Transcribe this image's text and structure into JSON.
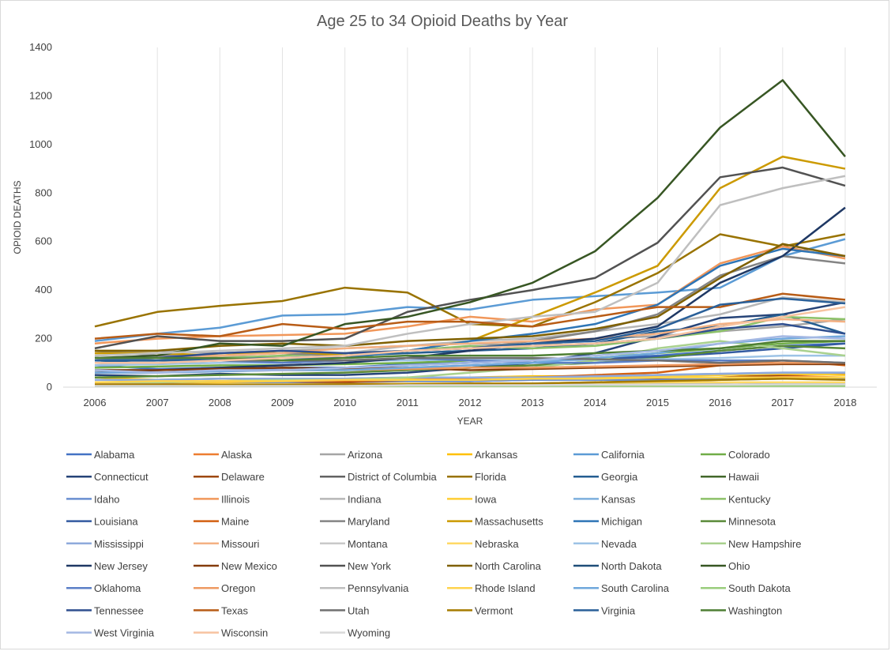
{
  "chart_data": {
    "type": "line",
    "title": "Age 25 to 34 Opioid Deaths by Year",
    "xlabel": "YEAR",
    "ylabel": "OPIOID DEATHS",
    "ylim": [
      0,
      1400
    ],
    "yticks": [
      0,
      200,
      400,
      600,
      800,
      1000,
      1200,
      1400
    ],
    "x": [
      2006,
      2007,
      2008,
      2009,
      2010,
      2011,
      2012,
      2013,
      2014,
      2015,
      2016,
      2017,
      2018
    ],
    "grid": "vertical",
    "legend_position": "bottom",
    "series": [
      {
        "name": "Alabama",
        "color": "#4472C4",
        "values": [
          90,
          75,
          80,
          70,
          80,
          95,
          100,
          110,
          120,
          130,
          150,
          170,
          180
        ]
      },
      {
        "name": "Alaska",
        "color": "#ED7D31",
        "values": [
          20,
          15,
          20,
          25,
          20,
          30,
          35,
          30,
          30,
          35,
          40,
          45,
          40
        ]
      },
      {
        "name": "Arizona",
        "color": "#A5A5A5",
        "values": [
          140,
          150,
          140,
          150,
          160,
          170,
          180,
          170,
          200,
          210,
          230,
          250,
          280
        ]
      },
      {
        "name": "Arkansas",
        "color": "#FFC000",
        "values": [
          40,
          30,
          35,
          30,
          30,
          35,
          40,
          45,
          45,
          50,
          50,
          55,
          50
        ]
      },
      {
        "name": "California",
        "color": "#5B9BD5",
        "values": [
          190,
          220,
          245,
          295,
          300,
          330,
          320,
          360,
          375,
          390,
          410,
          540,
          610
        ]
      },
      {
        "name": "Colorado",
        "color": "#70AD47",
        "values": [
          80,
          85,
          90,
          90,
          95,
          100,
          110,
          115,
          120,
          140,
          160,
          180,
          190
        ]
      },
      {
        "name": "Connecticut",
        "color": "#264478",
        "values": [
          50,
          45,
          55,
          50,
          50,
          60,
          80,
          100,
          140,
          210,
          285,
          300,
          350
        ]
      },
      {
        "name": "Delaware",
        "color": "#9E480E",
        "values": [
          15,
          15,
          20,
          20,
          20,
          25,
          25,
          30,
          30,
          35,
          40,
          50,
          55
        ]
      },
      {
        "name": "District of Columbia",
        "color": "#636363",
        "values": [
          10,
          10,
          10,
          10,
          10,
          10,
          12,
          15,
          20,
          25,
          30,
          35,
          40
        ]
      },
      {
        "name": "Florida",
        "color": "#997300",
        "values": [
          250,
          310,
          335,
          355,
          410,
          390,
          260,
          250,
          350,
          470,
          630,
          580,
          630
        ]
      },
      {
        "name": "Georgia",
        "color": "#255E91",
        "values": [
          100,
          110,
          115,
          120,
          130,
          140,
          150,
          160,
          180,
          230,
          250,
          300,
          220
        ]
      },
      {
        "name": "Hawaii",
        "color": "#43682B",
        "values": [
          10,
          10,
          10,
          10,
          10,
          10,
          10,
          10,
          10,
          12,
          12,
          12,
          15
        ]
      },
      {
        "name": "Idaho",
        "color": "#698ED0",
        "values": [
          20,
          20,
          20,
          20,
          25,
          25,
          25,
          30,
          30,
          30,
          35,
          35,
          35
        ]
      },
      {
        "name": "Illinois",
        "color": "#F1975A",
        "values": [
          180,
          200,
          210,
          215,
          220,
          250,
          290,
          270,
          320,
          340,
          510,
          580,
          530
        ]
      },
      {
        "name": "Indiana",
        "color": "#B7B7B7",
        "values": [
          90,
          110,
          130,
          120,
          140,
          170,
          190,
          200,
          230,
          260,
          300,
          370,
          350
        ]
      },
      {
        "name": "Iowa",
        "color": "#FFCD33",
        "values": [
          20,
          20,
          20,
          25,
          25,
          30,
          30,
          35,
          40,
          45,
          50,
          55,
          50
        ]
      },
      {
        "name": "Kansas",
        "color": "#7CAFDD",
        "values": [
          30,
          30,
          35,
          35,
          35,
          40,
          40,
          40,
          45,
          50,
          55,
          60,
          60
        ]
      },
      {
        "name": "Kentucky",
        "color": "#8CC168",
        "values": [
          130,
          140,
          120,
          130,
          140,
          150,
          170,
          160,
          170,
          200,
          230,
          290,
          280
        ]
      },
      {
        "name": "Louisiana",
        "color": "#335AA1",
        "values": [
          70,
          70,
          75,
          80,
          80,
          90,
          100,
          110,
          115,
          125,
          140,
          160,
          180
        ]
      },
      {
        "name": "Maine",
        "color": "#D26012",
        "values": [
          20,
          20,
          25,
          25,
          25,
          30,
          35,
          40,
          50,
          60,
          90,
          110,
          90
        ]
      },
      {
        "name": "Maryland",
        "color": "#848484",
        "values": [
          150,
          130,
          130,
          140,
          130,
          150,
          160,
          190,
          230,
          300,
          460,
          540,
          510
        ]
      },
      {
        "name": "Massachusetts",
        "color": "#CC9A00",
        "values": [
          140,
          140,
          130,
          150,
          130,
          150,
          190,
          290,
          390,
          500,
          820,
          950,
          900
        ]
      },
      {
        "name": "Michigan",
        "color": "#2E75B6",
        "values": [
          110,
          120,
          110,
          120,
          120,
          150,
          190,
          220,
          260,
          340,
          500,
          570,
          540
        ]
      },
      {
        "name": "Minnesota",
        "color": "#5A8A39",
        "values": [
          40,
          45,
          50,
          55,
          60,
          70,
          80,
          90,
          100,
          120,
          150,
          170,
          160
        ]
      },
      {
        "name": "Mississippi",
        "color": "#8FAADC",
        "values": [
          30,
          30,
          35,
          35,
          35,
          40,
          40,
          40,
          45,
          50,
          55,
          60,
          60
        ]
      },
      {
        "name": "Missouri",
        "color": "#F4B183",
        "values": [
          110,
          120,
          130,
          140,
          160,
          170,
          180,
          190,
          200,
          220,
          260,
          280,
          270
        ]
      },
      {
        "name": "Montana",
        "color": "#C9C9C9",
        "values": [
          10,
          10,
          10,
          10,
          10,
          10,
          12,
          12,
          12,
          15,
          15,
          15,
          15
        ]
      },
      {
        "name": "Nebraska",
        "color": "#FFD966",
        "values": [
          10,
          10,
          12,
          12,
          12,
          15,
          15,
          15,
          15,
          20,
          20,
          20,
          20
        ]
      },
      {
        "name": "Nevada",
        "color": "#9DC3E6",
        "values": [
          90,
          95,
          100,
          100,
          110,
          110,
          115,
          110,
          110,
          115,
          120,
          130,
          130
        ]
      },
      {
        "name": "New Hampshire",
        "color": "#A9D18E",
        "values": [
          20,
          20,
          25,
          30,
          30,
          40,
          60,
          80,
          110,
          160,
          190,
          160,
          130
        ]
      },
      {
        "name": "New Jersey",
        "color": "#1F3864",
        "values": [
          60,
          70,
          80,
          90,
          100,
          120,
          150,
          180,
          200,
          250,
          430,
          540,
          740
        ]
      },
      {
        "name": "New Mexico",
        "color": "#843C0C",
        "values": [
          70,
          70,
          75,
          80,
          75,
          80,
          70,
          75,
          80,
          85,
          90,
          95,
          95
        ]
      },
      {
        "name": "New York",
        "color": "#525252",
        "values": [
          160,
          210,
          190,
          190,
          200,
          310,
          360,
          400,
          450,
          595,
          865,
          905,
          830
        ]
      },
      {
        "name": "North Carolina",
        "color": "#7F6000",
        "values": [
          150,
          150,
          170,
          180,
          170,
          190,
          200,
          210,
          240,
          290,
          450,
          590,
          540
        ]
      },
      {
        "name": "North Dakota",
        "color": "#1F4E79",
        "values": [
          5,
          5,
          5,
          5,
          5,
          8,
          8,
          8,
          10,
          10,
          10,
          12,
          12
        ]
      },
      {
        "name": "Ohio",
        "color": "#375623",
        "values": [
          120,
          130,
          180,
          170,
          260,
          290,
          350,
          430,
          560,
          780,
          1070,
          1265,
          950
        ]
      },
      {
        "name": "Oklahoma",
        "color": "#5B7FC7",
        "values": [
          110,
          120,
          110,
          100,
          110,
          120,
          110,
          100,
          100,
          110,
          110,
          110,
          100
        ]
      },
      {
        "name": "Oregon",
        "color": "#EE9A62",
        "values": [
          60,
          60,
          65,
          70,
          70,
          75,
          80,
          80,
          85,
          90,
          95,
          100,
          100
        ]
      },
      {
        "name": "Pennsylvania",
        "color": "#BFBFBF",
        "values": [
          130,
          140,
          150,
          160,
          170,
          220,
          260,
          290,
          310,
          430,
          750,
          820,
          870
        ]
      },
      {
        "name": "Rhode Island",
        "color": "#FFD34D",
        "values": [
          20,
          25,
          25,
          25,
          30,
          30,
          30,
          35,
          35,
          40,
          40,
          40,
          40
        ]
      },
      {
        "name": "South Carolina",
        "color": "#6FA8DC",
        "values": [
          60,
          60,
          65,
          70,
          70,
          80,
          90,
          100,
          120,
          140,
          180,
          200,
          210
        ]
      },
      {
        "name": "South Dakota",
        "color": "#9ACD7C",
        "values": [
          5,
          5,
          5,
          5,
          5,
          5,
          5,
          5,
          5,
          5,
          5,
          5,
          5
        ]
      },
      {
        "name": "Tennessee",
        "color": "#2F4F8F",
        "values": [
          120,
          120,
          140,
          150,
          140,
          150,
          160,
          170,
          180,
          200,
          240,
          260,
          220
        ]
      },
      {
        "name": "Texas",
        "color": "#B85C16",
        "values": [
          200,
          220,
          210,
          260,
          240,
          270,
          270,
          250,
          290,
          330,
          330,
          385,
          360
        ]
      },
      {
        "name": "Utah",
        "color": "#707070",
        "values": [
          100,
          100,
          110,
          110,
          110,
          120,
          120,
          120,
          115,
          110,
          100,
          110,
          100
        ]
      },
      {
        "name": "Vermont",
        "color": "#A67C00",
        "values": [
          10,
          10,
          10,
          10,
          12,
          12,
          15,
          15,
          20,
          25,
          30,
          35,
          30
        ]
      },
      {
        "name": "Virginia",
        "color": "#2A6099",
        "values": [
          110,
          110,
          115,
          120,
          130,
          150,
          160,
          180,
          190,
          240,
          340,
          365,
          345
        ]
      },
      {
        "name": "Washington",
        "color": "#4E7F34",
        "values": [
          120,
          120,
          120,
          110,
          120,
          130,
          130,
          130,
          140,
          150,
          160,
          190,
          190
        ]
      },
      {
        "name": "West Virginia",
        "color": "#A4B8E3",
        "values": [
          70,
          60,
          70,
          70,
          80,
          90,
          100,
          110,
          130,
          150,
          180,
          210,
          200
        ]
      },
      {
        "name": "Wisconsin",
        "color": "#F7C3A0",
        "values": [
          100,
          100,
          110,
          120,
          130,
          150,
          160,
          170,
          180,
          200,
          250,
          290,
          330
        ]
      },
      {
        "name": "Wyoming",
        "color": "#D9D9D9",
        "values": [
          5,
          5,
          5,
          5,
          5,
          8,
          8,
          8,
          10,
          10,
          10,
          12,
          12
        ]
      }
    ]
  }
}
